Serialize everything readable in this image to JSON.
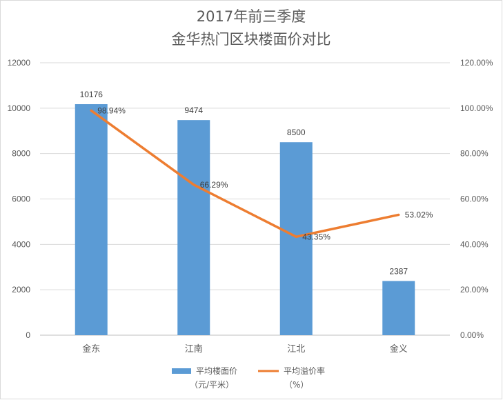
{
  "chart_data": {
    "type": "bar",
    "title": "2017年前三季度",
    "subtitle": "金华热门区块楼面价对比",
    "categories": [
      "金东",
      "江南",
      "江北",
      "金义"
    ],
    "ylim": [
      0,
      12000
    ],
    "y_ticks": [
      "0",
      "2000",
      "4000",
      "6000",
      "8000",
      "10000",
      "12000"
    ],
    "y2lim": [
      0,
      1.2
    ],
    "y2_ticks": [
      "0.00%",
      "20.00%",
      "40.00%",
      "60.00%",
      "80.00%",
      "100.00%",
      "120.00%"
    ],
    "grid": true,
    "legend_position": "bottom",
    "series": [
      {
        "name": "平均楼面价",
        "name_line2": "（元/平米）",
        "type": "bar",
        "axis": "left",
        "color": "#5B9BD5",
        "values": [
          10176,
          9474,
          8500,
          2387
        ],
        "labels": [
          "10176",
          "9474",
          "8500",
          "2387"
        ]
      },
      {
        "name": "平均溢价率",
        "name_line2": "（%）",
        "type": "line",
        "axis": "right",
        "color": "#ED7D31",
        "values": [
          0.9894,
          0.6629,
          0.4335,
          0.5302
        ],
        "labels": [
          "98.94%",
          "66.29%",
          "43.35%",
          "53.02%"
        ]
      }
    ]
  }
}
